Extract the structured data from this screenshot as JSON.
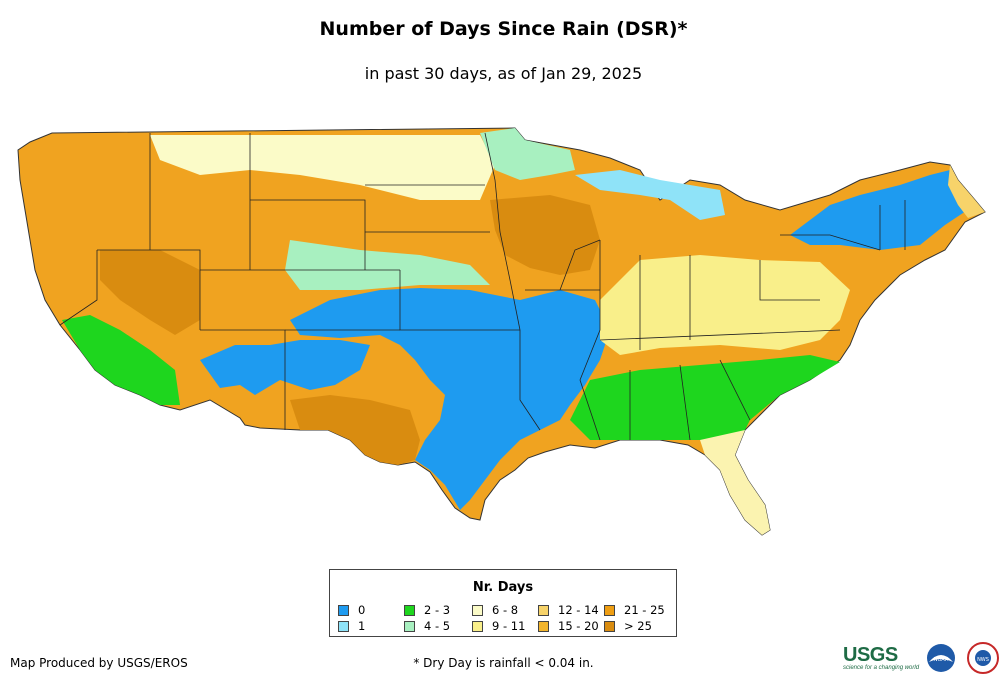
{
  "title": "Number of Days Since Rain (DSR)*",
  "subtitle": "in past 30 days, as of Jan 29, 2025",
  "legend": {
    "title": "Nr. Days",
    "items": [
      {
        "label": "0",
        "color": "#1e9bf0"
      },
      {
        "label": "1",
        "color": "#8fe3f8"
      },
      {
        "label": "2 - 3",
        "color": "#1ed61e"
      },
      {
        "label": "4 - 5",
        "color": "#a8f0c0"
      },
      {
        "label": "6 - 8",
        "color": "#fbfbc8"
      },
      {
        "label": "9 - 11",
        "color": "#f9ef8a"
      },
      {
        "label": "12 - 14",
        "color": "#f7d36a"
      },
      {
        "label": "15 - 20",
        "color": "#f2b52d"
      },
      {
        "label": "21 - 25",
        "color": "#ef9e12"
      },
      {
        "label": "> 25",
        "color": "#d98c10"
      }
    ]
  },
  "credit": "Map Produced by USGS/EROS",
  "footnote": "* Dry Day is rainfall < 0.04 in.",
  "logos": {
    "usgs": "USGS",
    "usgs_tagline": "science for a changing world",
    "noaa": "NOAA",
    "nws": "NWS"
  }
}
